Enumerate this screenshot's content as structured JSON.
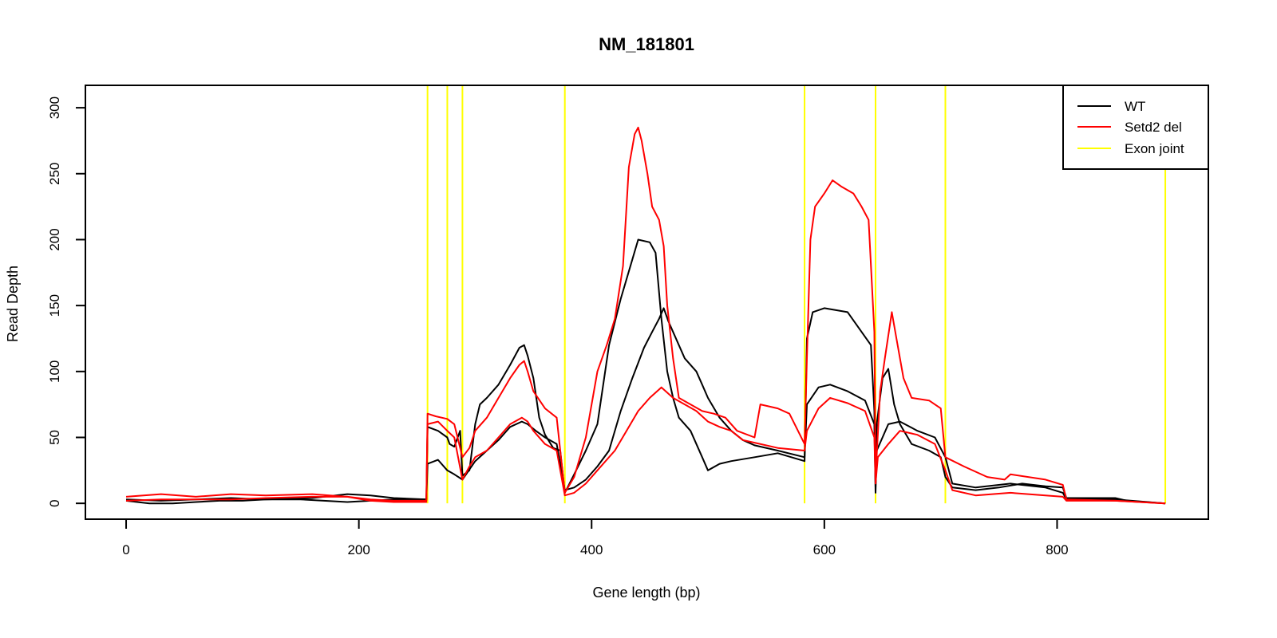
{
  "chart_data": {
    "type": "line",
    "title": "NM_181801",
    "xlabel": "Gene length (bp)",
    "ylabel": "Read Depth",
    "xlim": [
      -35,
      930
    ],
    "ylim": [
      -12,
      317
    ],
    "xticks": [
      0,
      200,
      400,
      600,
      800
    ],
    "yticks": [
      0,
      50,
      100,
      150,
      200,
      250,
      300
    ],
    "grid": false,
    "legend_position": "top-right",
    "legend": [
      {
        "label": "WT",
        "color": "#000000"
      },
      {
        "label": "Setd2 del",
        "color": "#ff0000"
      },
      {
        "label": "Exon joint",
        "color": "#ffff00"
      }
    ],
    "exon_joints": [
      259,
      276,
      289,
      377,
      583,
      644,
      704,
      893
    ],
    "series": [
      {
        "color": "#000000",
        "points": [
          [
            0,
            2
          ],
          [
            20,
            0
          ],
          [
            40,
            0
          ],
          [
            60,
            1
          ],
          [
            80,
            2
          ],
          [
            100,
            2
          ],
          [
            120,
            3
          ],
          [
            150,
            3
          ],
          [
            170,
            2
          ],
          [
            190,
            1
          ],
          [
            210,
            2
          ],
          [
            230,
            3
          ],
          [
            258,
            3
          ],
          [
            259,
            58
          ],
          [
            268,
            55
          ],
          [
            276,
            50
          ],
          [
            278,
            45
          ],
          [
            282,
            43
          ],
          [
            287,
            55
          ],
          [
            289,
            21
          ],
          [
            295,
            25
          ],
          [
            300,
            60
          ],
          [
            304,
            75
          ],
          [
            310,
            80
          ],
          [
            320,
            90
          ],
          [
            330,
            105
          ],
          [
            338,
            118
          ],
          [
            342,
            120
          ],
          [
            345,
            112
          ],
          [
            350,
            95
          ],
          [
            355,
            65
          ],
          [
            360,
            52
          ],
          [
            367,
            42
          ],
          [
            373,
            40
          ],
          [
            377,
            8
          ],
          [
            385,
            22
          ],
          [
            395,
            40
          ],
          [
            405,
            60
          ],
          [
            410,
            90
          ],
          [
            415,
            120
          ],
          [
            425,
            155
          ],
          [
            435,
            185
          ],
          [
            440,
            200
          ],
          [
            450,
            198
          ],
          [
            455,
            190
          ],
          [
            460,
            140
          ],
          [
            465,
            100
          ],
          [
            470,
            80
          ],
          [
            475,
            65
          ],
          [
            485,
            55
          ],
          [
            495,
            35
          ],
          [
            500,
            25
          ],
          [
            510,
            30
          ],
          [
            520,
            32
          ],
          [
            540,
            35
          ],
          [
            560,
            38
          ],
          [
            583,
            32
          ],
          [
            585,
            125
          ],
          [
            590,
            145
          ],
          [
            600,
            148
          ],
          [
            620,
            145
          ],
          [
            640,
            120
          ],
          [
            643,
            70
          ],
          [
            644,
            12
          ],
          [
            645,
            60
          ],
          [
            650,
            95
          ],
          [
            655,
            102
          ],
          [
            660,
            75
          ],
          [
            665,
            60
          ],
          [
            675,
            45
          ],
          [
            690,
            40
          ],
          [
            700,
            35
          ],
          [
            704,
            20
          ],
          [
            710,
            12
          ],
          [
            730,
            10
          ],
          [
            750,
            12
          ],
          [
            770,
            15
          ],
          [
            790,
            13
          ],
          [
            805,
            12
          ],
          [
            808,
            4
          ],
          [
            830,
            4
          ],
          [
            850,
            4
          ],
          [
            860,
            2
          ],
          [
            893,
            0
          ]
        ]
      },
      {
        "color": "#000000",
        "points": [
          [
            0,
            3
          ],
          [
            30,
            2
          ],
          [
            60,
            3
          ],
          [
            90,
            4
          ],
          [
            120,
            3
          ],
          [
            160,
            4
          ],
          [
            190,
            7
          ],
          [
            210,
            6
          ],
          [
            230,
            4
          ],
          [
            258,
            3
          ],
          [
            259,
            30
          ],
          [
            268,
            33
          ],
          [
            276,
            25
          ],
          [
            282,
            22
          ],
          [
            289,
            18
          ],
          [
            300,
            32
          ],
          [
            310,
            40
          ],
          [
            320,
            48
          ],
          [
            330,
            58
          ],
          [
            340,
            62
          ],
          [
            345,
            60
          ],
          [
            352,
            55
          ],
          [
            360,
            50
          ],
          [
            370,
            45
          ],
          [
            377,
            10
          ],
          [
            385,
            12
          ],
          [
            395,
            18
          ],
          [
            405,
            28
          ],
          [
            415,
            40
          ],
          [
            425,
            70
          ],
          [
            435,
            95
          ],
          [
            445,
            118
          ],
          [
            452,
            130
          ],
          [
            458,
            140
          ],
          [
            462,
            148
          ],
          [
            466,
            138
          ],
          [
            470,
            130
          ],
          [
            480,
            110
          ],
          [
            490,
            100
          ],
          [
            495,
            90
          ],
          [
            500,
            80
          ],
          [
            510,
            65
          ],
          [
            520,
            55
          ],
          [
            530,
            48
          ],
          [
            540,
            44
          ],
          [
            560,
            40
          ],
          [
            583,
            35
          ],
          [
            585,
            75
          ],
          [
            595,
            88
          ],
          [
            605,
            90
          ],
          [
            620,
            85
          ],
          [
            635,
            78
          ],
          [
            643,
            60
          ],
          [
            644,
            8
          ],
          [
            645,
            40
          ],
          [
            655,
            60
          ],
          [
            665,
            62
          ],
          [
            680,
            55
          ],
          [
            695,
            50
          ],
          [
            704,
            35
          ],
          [
            710,
            15
          ],
          [
            730,
            12
          ],
          [
            760,
            15
          ],
          [
            790,
            12
          ],
          [
            805,
            8
          ],
          [
            808,
            3
          ],
          [
            850,
            3
          ],
          [
            893,
            0
          ]
        ]
      },
      {
        "color": "#ff0000",
        "points": [
          [
            0,
            5
          ],
          [
            30,
            7
          ],
          [
            60,
            5
          ],
          [
            90,
            7
          ],
          [
            120,
            6
          ],
          [
            160,
            7
          ],
          [
            190,
            5
          ],
          [
            210,
            3
          ],
          [
            230,
            2
          ],
          [
            258,
            2
          ],
          [
            259,
            68
          ],
          [
            266,
            66
          ],
          [
            276,
            64
          ],
          [
            282,
            60
          ],
          [
            289,
            35
          ],
          [
            295,
            42
          ],
          [
            300,
            55
          ],
          [
            310,
            65
          ],
          [
            320,
            80
          ],
          [
            330,
            95
          ],
          [
            338,
            105
          ],
          [
            342,
            108
          ],
          [
            345,
            100
          ],
          [
            350,
            85
          ],
          [
            360,
            72
          ],
          [
            370,
            65
          ],
          [
            377,
            8
          ],
          [
            385,
            20
          ],
          [
            395,
            50
          ],
          [
            405,
            100
          ],
          [
            413,
            120
          ],
          [
            420,
            140
          ],
          [
            427,
            180
          ],
          [
            432,
            255
          ],
          [
            437,
            280
          ],
          [
            440,
            285
          ],
          [
            443,
            275
          ],
          [
            448,
            250
          ],
          [
            452,
            225
          ],
          [
            458,
            215
          ],
          [
            462,
            195
          ],
          [
            465,
            150
          ],
          [
            470,
            110
          ],
          [
            475,
            80
          ],
          [
            485,
            75
          ],
          [
            495,
            70
          ],
          [
            505,
            68
          ],
          [
            515,
            65
          ],
          [
            525,
            55
          ],
          [
            540,
            50
          ],
          [
            545,
            75
          ],
          [
            560,
            72
          ],
          [
            570,
            68
          ],
          [
            583,
            45
          ],
          [
            585,
            110
          ],
          [
            588,
            200
          ],
          [
            592,
            225
          ],
          [
            600,
            235
          ],
          [
            607,
            245
          ],
          [
            615,
            240
          ],
          [
            625,
            235
          ],
          [
            632,
            225
          ],
          [
            638,
            215
          ],
          [
            643,
            130
          ],
          [
            644,
            20
          ],
          [
            648,
            85
          ],
          [
            652,
            110
          ],
          [
            658,
            145
          ],
          [
            662,
            125
          ],
          [
            668,
            95
          ],
          [
            675,
            80
          ],
          [
            690,
            78
          ],
          [
            700,
            72
          ],
          [
            704,
            35
          ],
          [
            720,
            28
          ],
          [
            740,
            20
          ],
          [
            755,
            18
          ],
          [
            760,
            22
          ],
          [
            790,
            18
          ],
          [
            805,
            14
          ],
          [
            808,
            3
          ],
          [
            850,
            2
          ],
          [
            893,
            0
          ]
        ]
      },
      {
        "color": "#ff0000",
        "points": [
          [
            0,
            2
          ],
          [
            30,
            3
          ],
          [
            60,
            3
          ],
          [
            90,
            3
          ],
          [
            120,
            4
          ],
          [
            160,
            5
          ],
          [
            190,
            5
          ],
          [
            210,
            2
          ],
          [
            230,
            1
          ],
          [
            258,
            1
          ],
          [
            259,
            60
          ],
          [
            268,
            62
          ],
          [
            276,
            55
          ],
          [
            282,
            50
          ],
          [
            289,
            18
          ],
          [
            295,
            28
          ],
          [
            300,
            35
          ],
          [
            310,
            40
          ],
          [
            320,
            50
          ],
          [
            330,
            60
          ],
          [
            340,
            65
          ],
          [
            345,
            62
          ],
          [
            350,
            55
          ],
          [
            360,
            45
          ],
          [
            370,
            40
          ],
          [
            377,
            6
          ],
          [
            385,
            8
          ],
          [
            395,
            15
          ],
          [
            405,
            25
          ],
          [
            420,
            40
          ],
          [
            430,
            55
          ],
          [
            440,
            70
          ],
          [
            450,
            80
          ],
          [
            460,
            88
          ],
          [
            470,
            80
          ],
          [
            480,
            75
          ],
          [
            490,
            70
          ],
          [
            500,
            62
          ],
          [
            510,
            58
          ],
          [
            520,
            55
          ],
          [
            530,
            48
          ],
          [
            540,
            46
          ],
          [
            560,
            42
          ],
          [
            583,
            40
          ],
          [
            585,
            55
          ],
          [
            595,
            72
          ],
          [
            605,
            80
          ],
          [
            620,
            76
          ],
          [
            635,
            70
          ],
          [
            643,
            50
          ],
          [
            644,
            15
          ],
          [
            646,
            35
          ],
          [
            655,
            45
          ],
          [
            665,
            55
          ],
          [
            680,
            52
          ],
          [
            695,
            45
          ],
          [
            704,
            25
          ],
          [
            710,
            10
          ],
          [
            730,
            6
          ],
          [
            760,
            8
          ],
          [
            790,
            6
          ],
          [
            805,
            5
          ],
          [
            808,
            2
          ],
          [
            850,
            2
          ],
          [
            893,
            0
          ]
        ]
      }
    ]
  }
}
